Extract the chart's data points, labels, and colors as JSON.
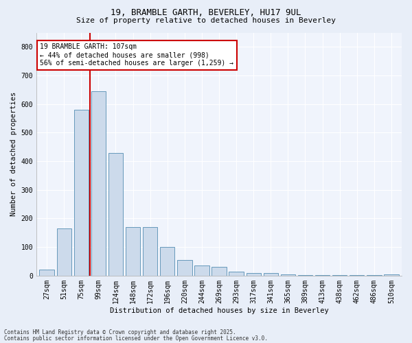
{
  "title1": "19, BRAMBLE GARTH, BEVERLEY, HU17 9UL",
  "title2": "Size of property relative to detached houses in Beverley",
  "xlabel": "Distribution of detached houses by size in Beverley",
  "ylabel": "Number of detached properties",
  "categories": [
    "27sqm",
    "51sqm",
    "75sqm",
    "99sqm",
    "124sqm",
    "148sqm",
    "172sqm",
    "196sqm",
    "220sqm",
    "244sqm",
    "269sqm",
    "293sqm",
    "317sqm",
    "341sqm",
    "365sqm",
    "389sqm",
    "413sqm",
    "438sqm",
    "462sqm",
    "486sqm",
    "510sqm"
  ],
  "values": [
    20,
    165,
    580,
    645,
    430,
    170,
    170,
    100,
    55,
    35,
    30,
    15,
    10,
    10,
    5,
    3,
    2,
    2,
    1,
    1,
    5
  ],
  "bar_color": "#ccdaeb",
  "bar_edge_color": "#6699bb",
  "vline_color": "#cc0000",
  "vline_index": 3,
  "annotation_text": "19 BRAMBLE GARTH: 107sqm\n← 44% of detached houses are smaller (998)\n56% of semi-detached houses are larger (1,259) →",
  "annotation_box_color": "#ffffff",
  "annotation_box_edge": "#cc0000",
  "ylim": [
    0,
    850
  ],
  "yticks": [
    0,
    100,
    200,
    300,
    400,
    500,
    600,
    700,
    800
  ],
  "footnote1": "Contains HM Land Registry data © Crown copyright and database right 2025.",
  "footnote2": "Contains public sector information licensed under the Open Government Licence v3.0.",
  "bg_color": "#e8eef8",
  "plot_bg_color": "#f0f4fc",
  "grid_color": "#ffffff",
  "title1_fontsize": 9,
  "title2_fontsize": 8,
  "axis_label_fontsize": 7.5,
  "tick_fontsize": 7,
  "annotation_fontsize": 7,
  "footnote_fontsize": 5.5
}
